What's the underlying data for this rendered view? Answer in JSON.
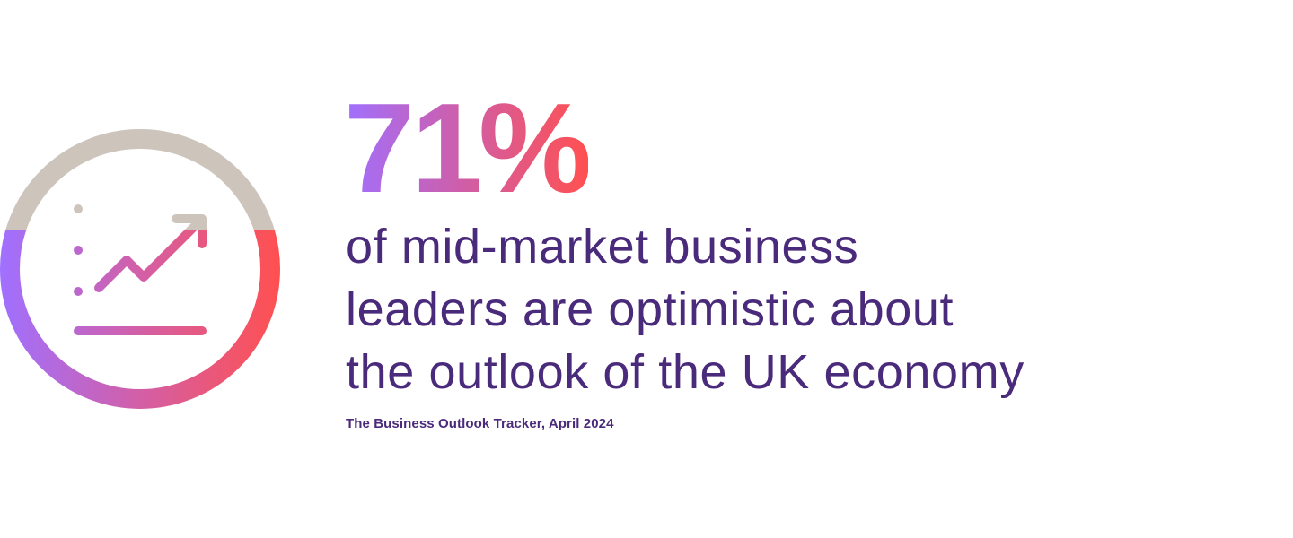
{
  "icon": {
    "name": "growth-chart-icon",
    "colors": {
      "gray": "#cdc4bc",
      "gradient_start": "#a070ff",
      "gradient_end": "#ff5050"
    }
  },
  "statistic": {
    "value": "71%"
  },
  "description": {
    "lines": [
      "of mid-market business",
      "leaders are optimistic about",
      "the outlook of the UK economy"
    ]
  },
  "source": "The Business Outlook Tracker, April 2024",
  "colors": {
    "text": "#4a2a7a"
  }
}
